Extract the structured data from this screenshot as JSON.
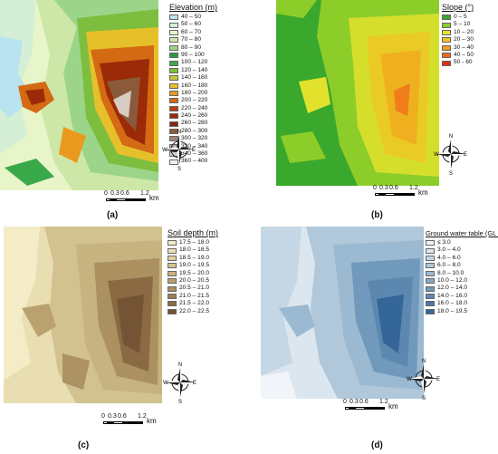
{
  "panels": {
    "a": {
      "caption": "(a)",
      "legend_title": "Elevation",
      "legend_unit": "(m)",
      "items": [
        {
          "label": "40 – 50",
          "color": "#b9e3ef"
        },
        {
          "label": "50 – 60",
          "color": "#d4efd6"
        },
        {
          "label": "60 – 70",
          "color": "#e8f5c8"
        },
        {
          "label": "70 – 80",
          "color": "#cde7a8"
        },
        {
          "label": "80 – 90",
          "color": "#9cd58a"
        },
        {
          "label": "90 – 100",
          "color": "#2e9a3b"
        },
        {
          "label": "100 – 120",
          "color": "#3aa94a"
        },
        {
          "label": "120 – 140",
          "color": "#7dbe3e"
        },
        {
          "label": "140 – 160",
          "color": "#c8c83a"
        },
        {
          "label": "160 – 180",
          "color": "#e6c02a"
        },
        {
          "label": "180 – 200",
          "color": "#e99a1e"
        },
        {
          "label": "200 – 220",
          "color": "#d46a14"
        },
        {
          "label": "220 – 240",
          "color": "#b8400e"
        },
        {
          "label": "240 – 260",
          "color": "#9a2a08"
        },
        {
          "label": "260 – 280",
          "color": "#7e2a12"
        },
        {
          "label": "280 – 300",
          "color": "#8b5a3a"
        },
        {
          "label": "300 – 320",
          "color": "#a48470"
        },
        {
          "label": "320 – 340",
          "color": "#bca99c"
        },
        {
          "label": "340 – 360",
          "color": "#d8ccc4"
        },
        {
          "label": "360 – 400",
          "color": "#f4f0ee"
        }
      ]
    },
    "b": {
      "caption": "(b)",
      "legend_title": "Slope",
      "legend_unit": "(°)",
      "items": [
        {
          "label": "0 – 5",
          "color": "#3aa82c"
        },
        {
          "label": "5 – 10",
          "color": "#8ccd2a"
        },
        {
          "label": "10 – 20",
          "color": "#e2e22c"
        },
        {
          "label": "20 – 30",
          "color": "#f2c224"
        },
        {
          "label": "30 – 40",
          "color": "#f39a1e"
        },
        {
          "label": "40 – 50",
          "color": "#ef6a18"
        },
        {
          "label": "50 - 60",
          "color": "#e52a14"
        }
      ]
    },
    "c": {
      "caption": "(c)",
      "legend_title": "Soil depth",
      "legend_unit": "(m)",
      "items": [
        {
          "label": "17.5 – 18.0",
          "color": "#f3ecc6"
        },
        {
          "label": "18.0 – 18.5",
          "color": "#e9deb2"
        },
        {
          "label": "18.5 – 19.0",
          "color": "#ddd0a0"
        },
        {
          "label": "19.0 – 19.5",
          "color": "#d2c290"
        },
        {
          "label": "19.5 – 20.0",
          "color": "#c6b380"
        },
        {
          "label": "20.0 – 20.5",
          "color": "#b9a26f"
        },
        {
          "label": "20.5 – 21.0",
          "color": "#ab9060"
        },
        {
          "label": "21.0 – 21.5",
          "color": "#9c7e52"
        },
        {
          "label": "21.5 – 22.0",
          "color": "#8a6a42"
        },
        {
          "label": "22.0 – 22.5",
          "color": "#745434"
        }
      ]
    },
    "d": {
      "caption": "(d)",
      "legend_title": "Ground water table",
      "legend_unit": "(GL -m)",
      "items": [
        {
          "label": "≤ 3.0",
          "color": "#f1f5f9"
        },
        {
          "label": "3.0 – 4.0",
          "color": "#dbe6ee"
        },
        {
          "label": "4.0 – 6.0",
          "color": "#c5d7e4"
        },
        {
          "label": "6.0 – 8.0",
          "color": "#b0c8da"
        },
        {
          "label": "8.0 – 10.0",
          "color": "#9bb9d0"
        },
        {
          "label": "10.0 – 12.0",
          "color": "#86a9c5"
        },
        {
          "label": "12.0 – 14.0",
          "color": "#7199bb"
        },
        {
          "label": "14.0 – 16.0",
          "color": "#5c88b0"
        },
        {
          "label": "16.0 – 18.0",
          "color": "#4877a5"
        },
        {
          "label": "18.0 – 19.5",
          "color": "#35669a"
        }
      ]
    }
  },
  "scale": {
    "ticks": [
      "0",
      "0.3",
      "0.6",
      "1.2"
    ],
    "unit": "km"
  },
  "compass": {
    "n": "N",
    "s": "S",
    "e": "E",
    "w": "W",
    "icon": "north-arrow-compass-rose"
  }
}
